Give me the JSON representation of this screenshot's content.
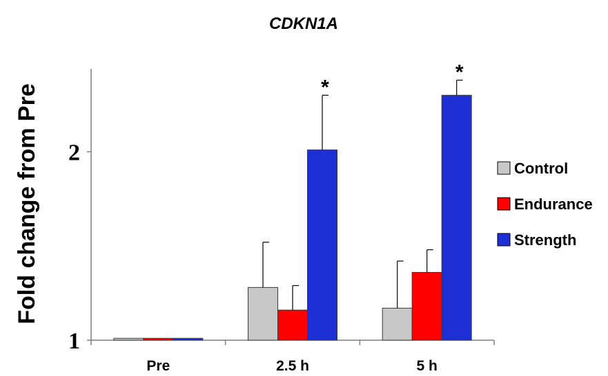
{
  "chart_data": {
    "type": "bar",
    "title": "CDKN1A",
    "ylabel": "Fold change from Pre",
    "xlabel": "",
    "categories": [
      "Pre",
      "2.5 h",
      "5 h"
    ],
    "ylim": [
      1,
      2.44
    ],
    "yticks": [
      {
        "value": 1,
        "label": "1"
      },
      {
        "value": 2,
        "label": "2"
      }
    ],
    "series": [
      {
        "name": "Control",
        "color": "#c8c8c8",
        "values": [
          1.01,
          1.28,
          1.17
        ],
        "errors": [
          0,
          0.24,
          0.25
        ]
      },
      {
        "name": "Endurance",
        "color": "#ff0000",
        "values": [
          1.01,
          1.16,
          1.36
        ],
        "errors": [
          0,
          0.13,
          0.12
        ]
      },
      {
        "name": "Strength",
        "color": "#1f2fd6",
        "values": [
          1.01,
          2.01,
          2.3
        ],
        "errors": [
          0,
          0.29,
          0.08
        ]
      }
    ],
    "annotations": [
      {
        "category": "2.5 h",
        "series": "Strength",
        "text": "*"
      },
      {
        "category": "5 h",
        "series": "Strength",
        "text": "*"
      }
    ],
    "grid": false,
    "legend_position": "right"
  }
}
